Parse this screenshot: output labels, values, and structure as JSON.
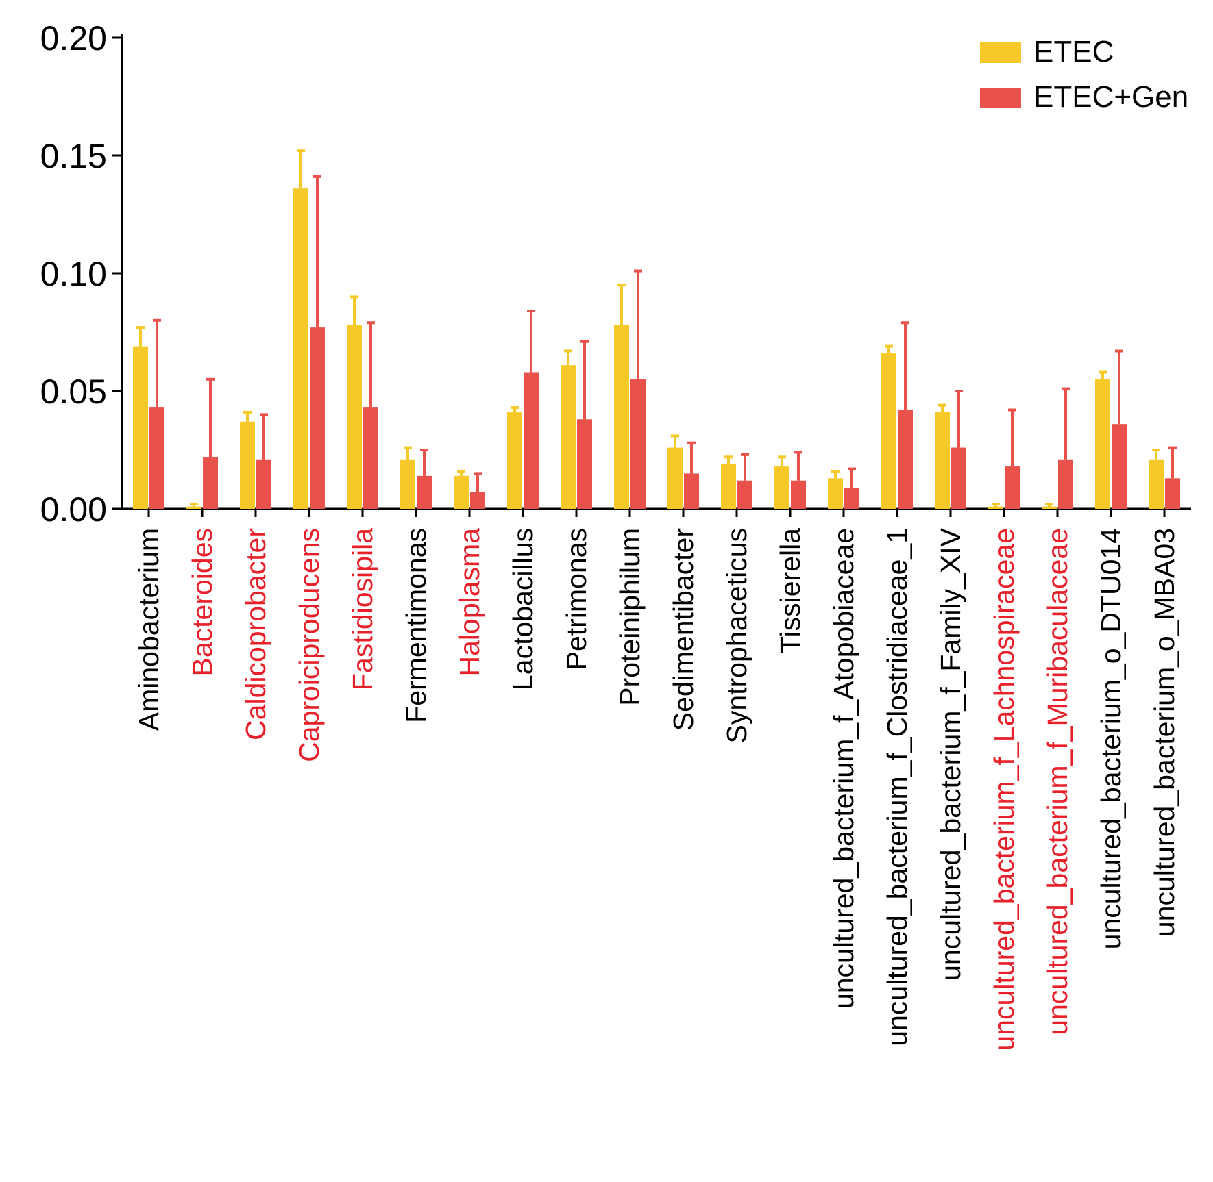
{
  "chart_data": {
    "type": "bar",
    "title": "",
    "xlabel": "",
    "ylabel": "",
    "ylim": [
      0,
      0.2
    ],
    "yticks": [
      "0.00",
      "0.05",
      "0.10",
      "0.15",
      "0.20"
    ],
    "legend_position": "top-right",
    "categories": [
      "Aminobacterium",
      "Bacteroides",
      "Caldicoprobacter",
      "Caproiciproducens",
      "Fastidiosipila",
      "Fermentimonas",
      "Haloplasma",
      "Lactobacillus",
      "Petrimonas",
      "Proteiniphilum",
      "Sedimentibacter",
      "Syntrophaceticus",
      "Tissierella",
      "uncultured_bacterium_f_Atopobiaceae",
      "uncultured_bacterium_f_Clostridiaceae_1",
      "uncultured_bacterium_f_Family_XIV",
      "uncultured_bacterium_f_Lachnospiraceae",
      "uncultured_bacterium_f_Muribaculaceae",
      "uncultured_bacterium_o_DTU014",
      "uncultured_bacterium_o_MBA03"
    ],
    "highlighted": [
      false,
      true,
      true,
      true,
      true,
      false,
      true,
      false,
      false,
      false,
      false,
      false,
      false,
      false,
      false,
      false,
      true,
      true,
      false,
      false
    ],
    "series": [
      {
        "name": "ETEC",
        "color": "#F5C928",
        "values": [
          0.069,
          0.001,
          0.037,
          0.136,
          0.078,
          0.021,
          0.014,
          0.041,
          0.061,
          0.078,
          0.026,
          0.019,
          0.018,
          0.013,
          0.066,
          0.041,
          0.001,
          0.001,
          0.055,
          0.021
        ],
        "errors": [
          0.008,
          0.001,
          0.004,
          0.016,
          0.012,
          0.005,
          0.002,
          0.002,
          0.006,
          0.017,
          0.005,
          0.003,
          0.004,
          0.003,
          0.003,
          0.003,
          0.001,
          0.001,
          0.003,
          0.004
        ]
      },
      {
        "name": "ETEC+Gen",
        "color": "#E8524A",
        "values": [
          0.043,
          0.022,
          0.021,
          0.077,
          0.043,
          0.014,
          0.007,
          0.058,
          0.038,
          0.055,
          0.015,
          0.012,
          0.012,
          0.009,
          0.042,
          0.026,
          0.018,
          0.021,
          0.036,
          0.013
        ],
        "errors": [
          0.037,
          0.033,
          0.019,
          0.064,
          0.036,
          0.011,
          0.008,
          0.026,
          0.033,
          0.046,
          0.013,
          0.011,
          0.012,
          0.008,
          0.037,
          0.024,
          0.024,
          0.03,
          0.031,
          0.013
        ]
      }
    ]
  },
  "colors": {
    "axis": "#000000",
    "label_default": "#000000",
    "label_highlight": "#E8202A"
  }
}
